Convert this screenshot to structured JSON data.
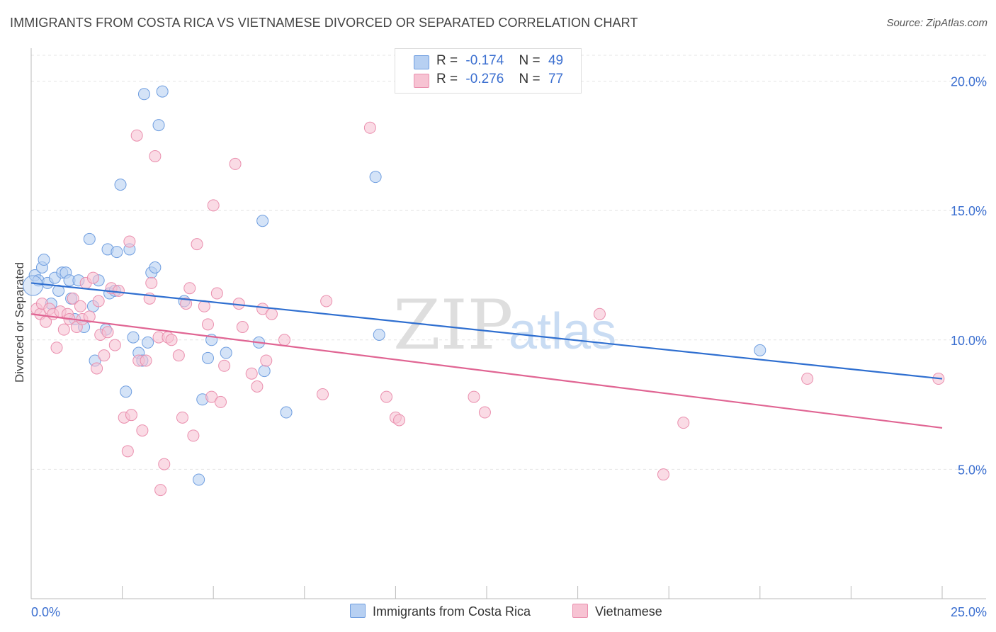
{
  "title": "IMMIGRANTS FROM COSTA RICA VS VIETNAMESE DIVORCED OR SEPARATED CORRELATION CHART",
  "source": "Source: ZipAtlas.com",
  "watermark": {
    "part1": "ZIP",
    "part2": "atlas"
  },
  "colors": {
    "blue_fill": "#b7d0f2",
    "blue_stroke": "#6f9ee0",
    "blue_line": "#2f6fd0",
    "pink_fill": "#f7c3d3",
    "pink_stroke": "#ea8fae",
    "pink_line": "#e06593",
    "axis_label": "#3b6fd0"
  },
  "legend": {
    "rows": [
      {
        "r_label": "R =",
        "r_value": "-0.174",
        "n_label": "N =",
        "n_value": "49"
      },
      {
        "r_label": "R =",
        "r_value": "-0.276",
        "n_label": "N =",
        "n_value": "77"
      }
    ]
  },
  "bottom_legend": [
    "Immigrants from Costa Rica",
    "Vietnamese"
  ],
  "chart_data": {
    "type": "scatter",
    "title": "IMMIGRANTS FROM COSTA RICA VS VIETNAMESE DIVORCED OR SEPARATED CORRELATION CHART",
    "xlabel": "",
    "ylabel": "Divorced or Separated",
    "xlim": [
      0,
      25
    ],
    "ylim": [
      0,
      21
    ],
    "x_tick_labels": [
      "0.0%",
      "25.0%"
    ],
    "y_ticks": [
      5,
      10,
      15,
      20
    ],
    "y_tick_labels": [
      "5.0%",
      "10.0%",
      "15.0%",
      "20.0%"
    ],
    "grid": true,
    "legend_position": "top-center",
    "series": [
      {
        "name": "Immigrants from Costa Rica",
        "color": "#6f9ee0",
        "trend": {
          "x": [
            0,
            25
          ],
          "y": [
            12.2,
            8.5
          ]
        },
        "points": [
          [
            0.1,
            12.5
          ],
          [
            0.2,
            12.3
          ],
          [
            0.3,
            12.8
          ],
          [
            0.35,
            13.1
          ],
          [
            0.45,
            12.2
          ],
          [
            0.55,
            11.4
          ],
          [
            0.65,
            12.4
          ],
          [
            0.75,
            11.9
          ],
          [
            0.85,
            12.6
          ],
          [
            0.95,
            12.6
          ],
          [
            1.05,
            12.3
          ],
          [
            1.1,
            11.6
          ],
          [
            1.2,
            10.8
          ],
          [
            1.3,
            12.3
          ],
          [
            1.45,
            10.5
          ],
          [
            1.6,
            13.9
          ],
          [
            1.7,
            11.3
          ],
          [
            1.75,
            9.2
          ],
          [
            1.85,
            12.3
          ],
          [
            2.05,
            10.4
          ],
          [
            2.1,
            13.5
          ],
          [
            2.15,
            11.8
          ],
          [
            2.3,
            11.9
          ],
          [
            2.35,
            13.4
          ],
          [
            2.45,
            16.0
          ],
          [
            2.6,
            8.0
          ],
          [
            2.7,
            13.5
          ],
          [
            2.8,
            10.1
          ],
          [
            2.95,
            9.5
          ],
          [
            3.05,
            9.2
          ],
          [
            3.1,
            19.5
          ],
          [
            3.2,
            9.9
          ],
          [
            3.3,
            12.6
          ],
          [
            3.4,
            12.8
          ],
          [
            3.5,
            18.3
          ],
          [
            3.6,
            19.6
          ],
          [
            4.2,
            11.5
          ],
          [
            4.6,
            4.6
          ],
          [
            4.7,
            7.7
          ],
          [
            4.85,
            9.3
          ],
          [
            4.95,
            10.0
          ],
          [
            5.35,
            9.5
          ],
          [
            6.25,
            9.9
          ],
          [
            6.35,
            14.6
          ],
          [
            6.4,
            8.8
          ],
          [
            7.0,
            7.2
          ],
          [
            9.45,
            16.3
          ],
          [
            9.55,
            10.2
          ],
          [
            20.0,
            9.6
          ]
        ]
      },
      {
        "name": "Vietnamese",
        "color": "#ea8fae",
        "trend": {
          "x": [
            0,
            25
          ],
          "y": [
            11.0,
            6.6
          ]
        },
        "points": [
          [
            0.15,
            11.2
          ],
          [
            0.25,
            11.0
          ],
          [
            0.3,
            11.4
          ],
          [
            0.4,
            10.7
          ],
          [
            0.5,
            11.2
          ],
          [
            0.6,
            11.0
          ],
          [
            0.7,
            9.7
          ],
          [
            0.8,
            11.1
          ],
          [
            0.9,
            10.4
          ],
          [
            1.0,
            11.0
          ],
          [
            1.05,
            10.8
          ],
          [
            1.15,
            11.6
          ],
          [
            1.25,
            10.5
          ],
          [
            1.35,
            11.3
          ],
          [
            1.4,
            10.8
          ],
          [
            1.5,
            12.2
          ],
          [
            1.6,
            10.9
          ],
          [
            1.7,
            12.4
          ],
          [
            1.8,
            8.9
          ],
          [
            1.85,
            11.5
          ],
          [
            1.9,
            10.2
          ],
          [
            2.0,
            9.4
          ],
          [
            2.1,
            10.3
          ],
          [
            2.2,
            12.0
          ],
          [
            2.3,
            9.8
          ],
          [
            2.4,
            11.9
          ],
          [
            2.55,
            7.0
          ],
          [
            2.65,
            5.7
          ],
          [
            2.7,
            13.8
          ],
          [
            2.75,
            7.1
          ],
          [
            2.9,
            17.9
          ],
          [
            2.95,
            9.2
          ],
          [
            3.05,
            6.5
          ],
          [
            3.15,
            9.2
          ],
          [
            3.25,
            11.6
          ],
          [
            3.3,
            12.2
          ],
          [
            3.4,
            17.1
          ],
          [
            3.5,
            10.1
          ],
          [
            3.55,
            4.2
          ],
          [
            3.65,
            5.2
          ],
          [
            3.75,
            10.1
          ],
          [
            3.85,
            10.0
          ],
          [
            4.05,
            9.4
          ],
          [
            4.15,
            7.0
          ],
          [
            4.25,
            11.4
          ],
          [
            4.35,
            12.0
          ],
          [
            4.45,
            6.3
          ],
          [
            4.55,
            13.7
          ],
          [
            4.75,
            11.3
          ],
          [
            4.85,
            10.6
          ],
          [
            4.95,
            7.8
          ],
          [
            5.0,
            15.2
          ],
          [
            5.1,
            11.8
          ],
          [
            5.2,
            7.6
          ],
          [
            5.3,
            9.0
          ],
          [
            5.6,
            16.8
          ],
          [
            5.7,
            11.4
          ],
          [
            5.8,
            10.5
          ],
          [
            6.05,
            8.7
          ],
          [
            6.2,
            8.2
          ],
          [
            6.35,
            11.2
          ],
          [
            6.45,
            9.2
          ],
          [
            6.6,
            11.0
          ],
          [
            6.95,
            10.0
          ],
          [
            8.0,
            7.9
          ],
          [
            8.1,
            11.5
          ],
          [
            9.3,
            18.2
          ],
          [
            9.75,
            7.8
          ],
          [
            10.0,
            7.0
          ],
          [
            10.1,
            6.9
          ],
          [
            12.15,
            7.8
          ],
          [
            12.45,
            7.2
          ],
          [
            15.6,
            11.0
          ],
          [
            17.35,
            4.8
          ],
          [
            17.9,
            6.8
          ],
          [
            21.3,
            8.5
          ],
          [
            24.9,
            8.5
          ]
        ]
      }
    ]
  }
}
